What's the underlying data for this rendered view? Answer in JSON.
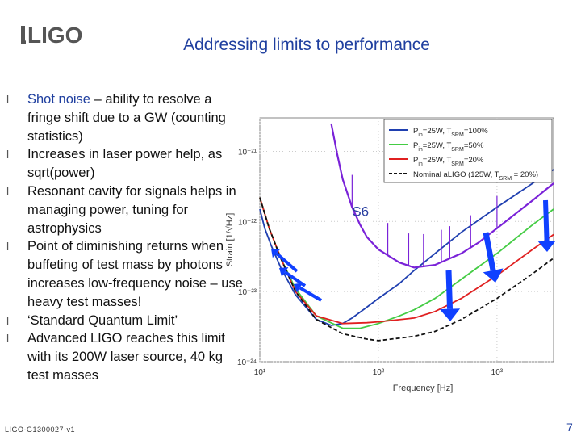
{
  "logo": {
    "text": "LIGO"
  },
  "title": "Addressing limits to performance",
  "bullets": [
    {
      "highlight": "Shot noise",
      "text": " – ability to resolve a fringe shift due to a GW (counting statistics)"
    },
    {
      "text": "Increases in laser power help, as sqrt(power)"
    },
    {
      "text": "Resonant cavity for signals helps in managing power, tuning for astrophysics"
    },
    {
      "text": "Point of diminishing returns when buffeting of test mass by photons increases low-frequency noise – use heavy test masses!"
    },
    {
      "text": "‘Standard Quantum Limit’"
    },
    {
      "text": "Advanced LIGO reaches this limit with its 200W laser source, 40 kg test masses"
    }
  ],
  "footer": "LIGO-G1300027-v1",
  "page_number": "7",
  "chart_data": {
    "type": "line",
    "xlabel": "Frequency [Hz]",
    "ylabel": "Strain [1/√Hz]",
    "xscale": "log",
    "yscale": "log",
    "xlim": [
      10,
      3000
    ],
    "ylim": [
      1e-24,
      3e-21
    ],
    "xticks": [
      "10¹",
      "10²",
      "10³"
    ],
    "yticks": [
      "10⁻²¹",
      "10⁻²²",
      "10⁻²³",
      "10⁻²⁴"
    ],
    "annotation": "S6",
    "legend_position": "top-right",
    "series": [
      {
        "name": "Pin=25W, TSRM=100%",
        "label_base": "P",
        "label_sub1": "in",
        "label_mid": "=25W, T",
        "label_sub2": "SRM",
        "label_end": "=100%",
        "color": "#1f3fb0",
        "x": [
          10,
          11,
          12.5,
          15,
          20,
          30,
          40,
          50,
          60,
          80,
          100,
          150,
          200,
          300,
          500,
          1000,
          2000,
          3000
        ],
        "y": [
          1.5e-22,
          8e-23,
          4.5e-23,
          2.2e-23,
          9e-24,
          4e-24,
          3.3e-24,
          3.5e-24,
          4.2e-24,
          6e-24,
          8e-24,
          1.3e-23,
          2e-23,
          3.5e-23,
          7e-23,
          1.6e-22,
          3.5e-22,
          5.5e-22
        ]
      },
      {
        "name": "Pin=25W, TSRM=50%",
        "label_base": "P",
        "label_sub1": "in",
        "label_mid": "=25W, T",
        "label_sub2": "SRM",
        "label_end": "=50%",
        "color": "#44cc44",
        "x": [
          10,
          12,
          15,
          20,
          30,
          50,
          70,
          100,
          150,
          200,
          300,
          500,
          1000,
          2000,
          3000
        ],
        "y": [
          2.2e-22,
          8e-23,
          3e-23,
          1.1e-23,
          4.5e-24,
          3e-24,
          3e-24,
          3.5e-24,
          4.5e-24,
          5.5e-24,
          8e-24,
          1.5e-23,
          3.5e-23,
          9e-23,
          1.5e-22
        ]
      },
      {
        "name": "Pin=25W, TSRM=20%",
        "label_base": "P",
        "label_sub1": "in",
        "label_mid": "=25W, T",
        "label_sub2": "SRM",
        "label_end": "=20%",
        "color": "#e02020",
        "x": [
          10,
          12,
          15,
          20,
          30,
          50,
          80,
          100,
          200,
          300,
          500,
          1000,
          2000,
          3000
        ],
        "y": [
          2.2e-22,
          8e-23,
          3e-23,
          1e-23,
          4.5e-24,
          3.5e-24,
          3.6e-24,
          3.7e-24,
          4.2e-24,
          5.2e-24,
          8e-24,
          1.7e-23,
          4e-23,
          6.5e-23
        ]
      },
      {
        "name": "Nominal aLIGO (125W, TSRM = 20%)",
        "label_base": "Nominal aLIGO (125W, T",
        "label_sub1": "",
        "label_mid": "",
        "label_sub2": "SRM",
        "label_end": " = 20%)",
        "color": "#111111",
        "dashed": true,
        "x": [
          10,
          12,
          15,
          20,
          30,
          50,
          80,
          100,
          200,
          300,
          500,
          1000,
          2000,
          3000
        ],
        "y": [
          2.2e-22,
          8e-23,
          3e-23,
          1e-23,
          4e-24,
          2.5e-24,
          2.1e-24,
          2e-24,
          2.3e-24,
          2.7e-24,
          4e-24,
          8e-24,
          1.8e-23,
          3e-23
        ]
      },
      {
        "name": "S6",
        "color": "#7a22d8",
        "x": [
          40,
          45,
          50,
          60,
          70,
          80,
          100,
          150,
          200,
          300,
          500,
          700,
          1000,
          2000,
          3000
        ],
        "y": [
          2.5e-21,
          9e-22,
          4e-22,
          1.6e-22,
          9e-23,
          6e-23,
          4e-23,
          2.6e-23,
          2.2e-23,
          2.4e-23,
          3.5e-23,
          5e-23,
          8e-23,
          2e-22,
          3.5e-22
        ]
      }
    ]
  }
}
